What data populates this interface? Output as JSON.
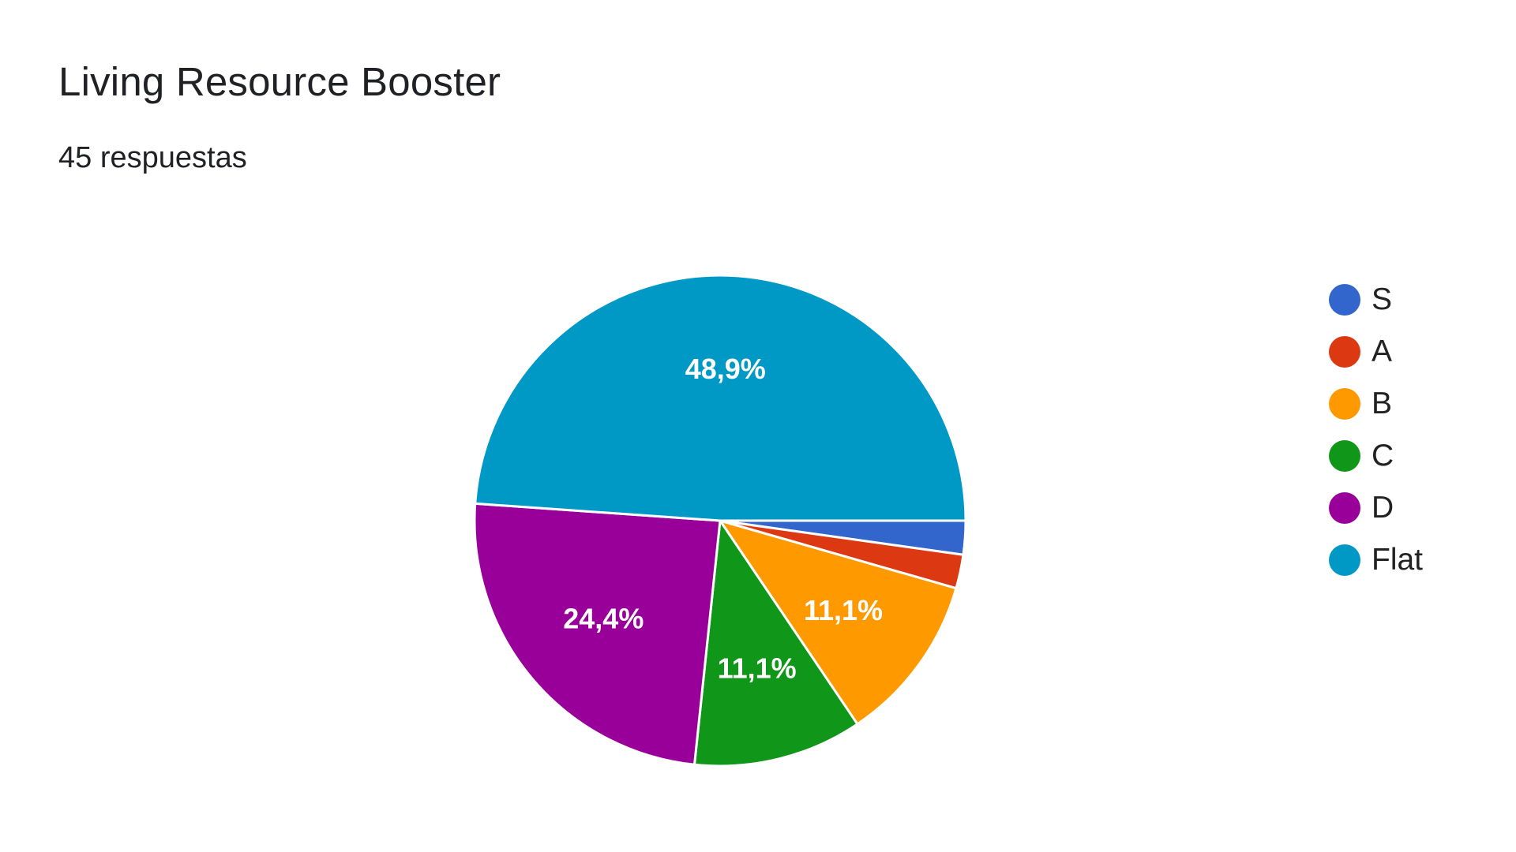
{
  "header": {
    "title": "Living Resource Booster",
    "responses": "45 respuestas"
  },
  "chart_data": {
    "type": "pie",
    "title": "Living Resource Booster",
    "subtitle": "45 respuestas",
    "categories": [
      "S",
      "A",
      "B",
      "C",
      "D",
      "Flat"
    ],
    "values": [
      1,
      1,
      5,
      5,
      11,
      22
    ],
    "percent_labels": [
      "2,2%",
      "2,2%",
      "11,1%",
      "11,1%",
      "24,4%",
      "48,9%"
    ],
    "shown_labels": [
      false,
      false,
      true,
      true,
      true,
      true
    ],
    "colors": [
      "#3366cc",
      "#dc3912",
      "#ff9900",
      "#109618",
      "#990099",
      "#0099c6"
    ],
    "legend_position": "right"
  }
}
